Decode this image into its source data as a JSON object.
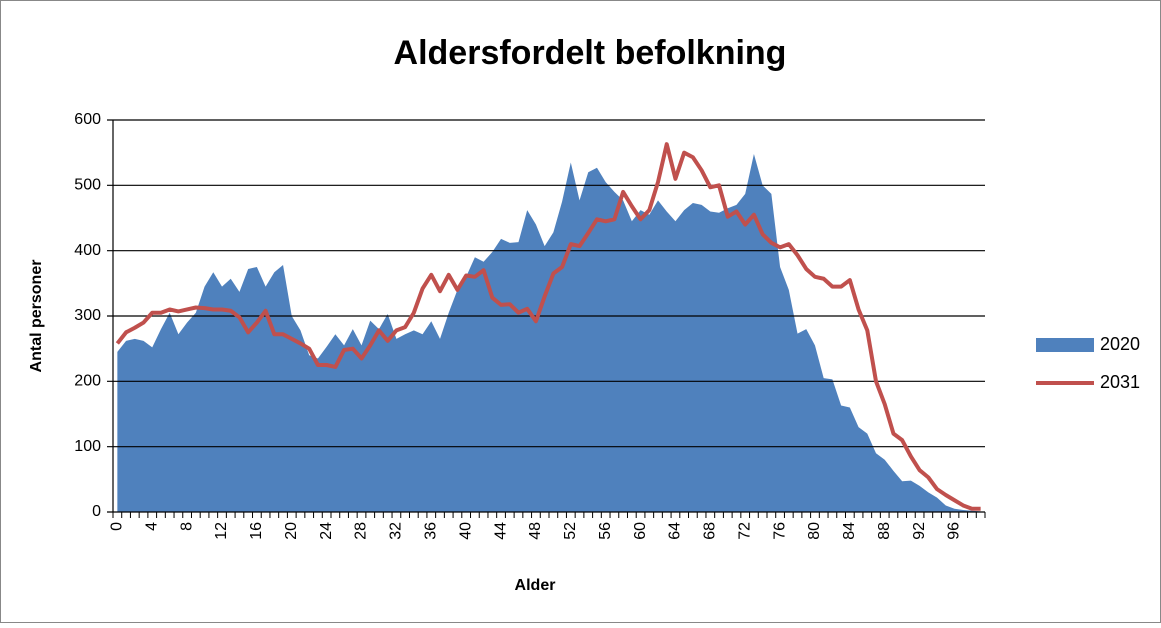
{
  "chart_data": {
    "type": "area-line",
    "title": "Aldersfordelt befolkning",
    "x_label": "Alder",
    "y_label": "Antal personer",
    "categories": [
      0,
      null,
      null,
      null,
      4,
      null,
      null,
      null,
      8,
      null,
      null,
      null,
      12,
      null,
      null,
      null,
      16,
      null,
      null,
      null,
      20,
      null,
      null,
      null,
      24,
      null,
      null,
      null,
      28,
      null,
      null,
      null,
      32,
      null,
      null,
      null,
      36,
      null,
      null,
      null,
      40,
      null,
      null,
      null,
      44,
      null,
      null,
      null,
      48,
      null,
      null,
      null,
      52,
      null,
      null,
      null,
      56,
      null,
      null,
      null,
      60,
      null,
      null,
      null,
      64,
      null,
      null,
      null,
      68,
      null,
      null,
      null,
      72,
      null,
      null,
      null,
      76,
      null,
      null,
      null,
      80,
      null,
      null,
      null,
      84,
      null,
      null,
      null,
      88,
      null,
      null,
      null,
      92,
      null,
      null,
      null,
      96,
      null,
      null,
      null
    ],
    "series": [
      {
        "name": "2020",
        "kind": "area",
        "color": "#4f81bd",
        "values": [
          245,
          262,
          265,
          262,
          252,
          280,
          305,
          272,
          290,
          305,
          345,
          367,
          345,
          357,
          337,
          372,
          375,
          345,
          367,
          378,
          300,
          278,
          240,
          235,
          253,
          272,
          255,
          280,
          255,
          293,
          280,
          303,
          265,
          272,
          278,
          272,
          292,
          265,
          305,
          340,
          360,
          390,
          383,
          398,
          418,
          412,
          413,
          462,
          440,
          407,
          428,
          475,
          535,
          477,
          520,
          527,
          505,
          490,
          477,
          445,
          462,
          455,
          477,
          460,
          445,
          462,
          473,
          470,
          460,
          458,
          465,
          470,
          487,
          548,
          500,
          487,
          375,
          340,
          273,
          280,
          255,
          205,
          203,
          163,
          160,
          130,
          120,
          90,
          80,
          63,
          47,
          48,
          40,
          30,
          22,
          10,
          5,
          3,
          2,
          1
        ]
      },
      {
        "name": "2031",
        "kind": "line",
        "color": "#c0504d",
        "values": [
          258,
          275,
          282,
          290,
          305,
          305,
          310,
          307,
          310,
          313,
          312,
          310,
          310,
          308,
          298,
          275,
          290,
          308,
          272,
          272,
          265,
          258,
          250,
          225,
          225,
          222,
          248,
          250,
          235,
          255,
          278,
          262,
          278,
          283,
          305,
          342,
          363,
          338,
          363,
          340,
          362,
          360,
          370,
          328,
          317,
          318,
          305,
          311,
          292,
          330,
          365,
          375,
          410,
          407,
          427,
          448,
          445,
          448,
          490,
          468,
          448,
          462,
          505,
          563,
          510,
          550,
          543,
          523,
          497,
          500,
          452,
          460,
          440,
          455,
          425,
          412,
          405,
          410,
          393,
          372,
          360,
          357,
          345,
          345,
          355,
          310,
          278,
          200,
          165,
          120,
          110,
          85,
          64,
          53,
          35,
          26,
          18,
          10,
          5,
          5
        ]
      }
    ],
    "ylim": [
      0,
      600
    ],
    "yticks": [
      0,
      100,
      200,
      300,
      400,
      500,
      600
    ],
    "grid": true,
    "legend": "right"
  }
}
